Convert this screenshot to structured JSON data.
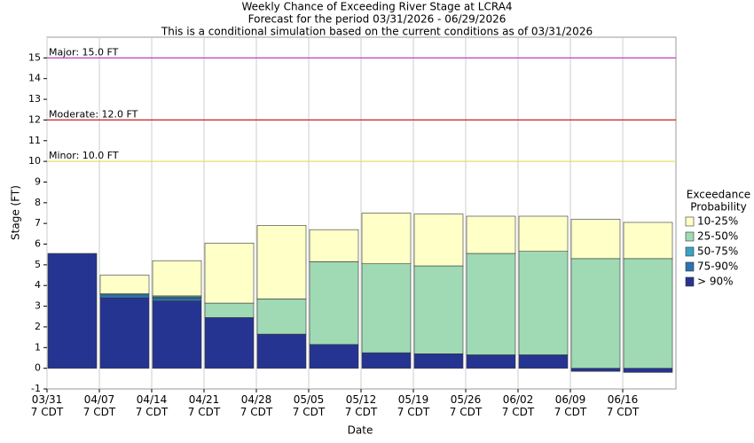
{
  "chart_data": {
    "type": "stacked_bar",
    "title": "Weekly Chance of Exceeding River Stage at LCRA4",
    "subtitle": [
      "Forecast for the period 03/31/2026 - 06/29/2026",
      "This is a conditional simulation based on the current conditions as of 03/31/2026"
    ],
    "x_label": "Date",
    "y_label": "Stage (FT)",
    "legend_title": [
      "Exceedance",
      "Probability"
    ],
    "categories": [
      "03/31 7 CDT",
      "04/07 7 CDT",
      "04/14 7 CDT",
      "04/21 7 CDT",
      "04/28 7 CDT",
      "05/05 7 CDT",
      "05/12 7 CDT",
      "05/19 7 CDT",
      "05/26 7 CDT",
      "06/02 7 CDT",
      "06/09 7 CDT",
      "06/16 7 CDT"
    ],
    "series": [
      {
        "name": "> 90%",
        "color": "#263491",
        "values": [
          5.55,
          3.4,
          3.25,
          2.45,
          1.65,
          1.15,
          0.75,
          0.7,
          0.65,
          0.65,
          -0.15,
          -0.2
        ]
      },
      {
        "name": "75-90%",
        "color": "#2b73b0",
        "values": [
          0,
          0.15,
          0.15,
          0,
          0,
          0,
          0,
          0,
          0,
          0,
          0,
          0
        ]
      },
      {
        "name": "50-75%",
        "color": "#3ba3c3",
        "values": [
          0,
          0.05,
          0.05,
          0,
          0,
          0,
          0,
          0,
          0,
          0,
          0,
          0
        ]
      },
      {
        "name": "25-50%",
        "color": "#9fdab5",
        "values": [
          0,
          0,
          0.05,
          0.7,
          1.7,
          4.0,
          4.3,
          4.25,
          4.9,
          5.0,
          5.3,
          5.3
        ]
      },
      {
        "name": "10-25%",
        "color": "#ffffc8",
        "values": [
          0,
          0.9,
          1.7,
          2.9,
          3.55,
          1.55,
          2.45,
          2.5,
          1.8,
          1.7,
          1.9,
          1.75
        ]
      }
    ],
    "thresholds": [
      {
        "label": "Major: 15.0 FT",
        "value": 15,
        "color": "#c040c0"
      },
      {
        "label": "Moderate: 12.0 FT",
        "value": 12,
        "color": "#cc2020"
      },
      {
        "label": "Minor: 10.0 FT",
        "value": 10,
        "color": "#e8e060"
      }
    ],
    "ylim": [
      -1,
      16
    ],
    "yticks": [
      -1,
      0,
      1,
      2,
      3,
      4,
      5,
      6,
      7,
      8,
      9,
      10,
      11,
      12,
      13,
      14,
      15
    ],
    "grid": true,
    "legend": "right"
  }
}
